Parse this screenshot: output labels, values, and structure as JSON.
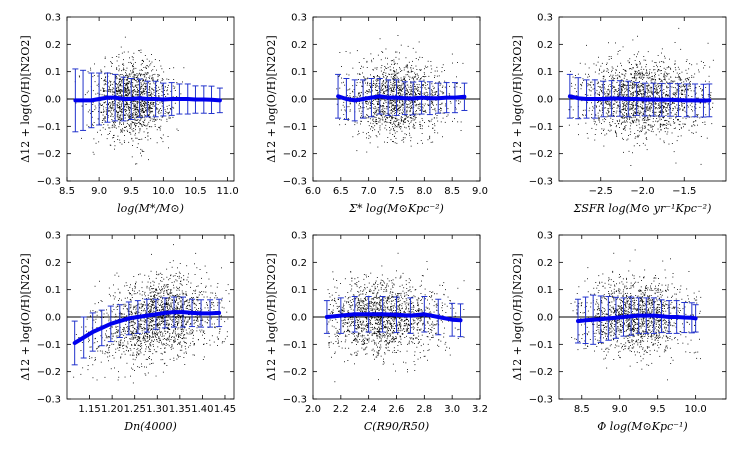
{
  "figure": {
    "ylabel": "Δ12 + log(O/H)[N2O2]"
  },
  "chart_data": [
    {
      "type": "scatter",
      "xlabel": "log(M*/M⊙)",
      "xlim": [
        8.5,
        11.1
      ],
      "ylim": [
        -0.3,
        0.3
      ],
      "xticks": [
        8.5,
        9.0,
        9.5,
        10.0,
        10.5,
        11.0
      ],
      "xtick_labels": [
        "8.5",
        "9.0",
        "9.5",
        "10.0",
        "10.5",
        "11.0"
      ],
      "yticks": [
        -0.3,
        -0.2,
        -0.1,
        0.0,
        0.1,
        0.2,
        0.3
      ],
      "ytick_labels": [
        "−0.3",
        "−0.2",
        "−0.1",
        "0.0",
        "0.1",
        "0.2",
        "0.3"
      ],
      "scatter": {
        "x_range": [
          8.6,
          10.9
        ],
        "center": 9.5,
        "spread": 0.3,
        "y_sigma": 0.07,
        "n": 1500
      },
      "binned": {
        "x": [
          8.63,
          8.75,
          8.88,
          9.0,
          9.13,
          9.25,
          9.38,
          9.5,
          9.63,
          9.75,
          9.88,
          10.0,
          10.13,
          10.25,
          10.38,
          10.5,
          10.63,
          10.75,
          10.88
        ],
        "median": [
          -0.005,
          -0.005,
          -0.005,
          0.0,
          0.005,
          0.005,
          0.0,
          0.0,
          0.003,
          0.0,
          0.0,
          -0.002,
          0.0,
          0.0,
          0.0,
          -0.002,
          -0.002,
          -0.003,
          -0.005
        ],
        "err": [
          0.115,
          0.11,
          0.1,
          0.095,
          0.09,
          0.085,
          0.08,
          0.075,
          0.07,
          0.065,
          0.065,
          0.06,
          0.06,
          0.055,
          0.055,
          0.05,
          0.05,
          0.05,
          0.045
        ]
      }
    },
    {
      "type": "scatter",
      "xlabel": "Σ* log(M⊙Kpc⁻²)",
      "xlim": [
        6.0,
        9.0
      ],
      "ylim": [
        -0.3,
        0.3
      ],
      "xticks": [
        6.0,
        6.5,
        7.0,
        7.5,
        8.0,
        8.5,
        9.0
      ],
      "xtick_labels": [
        "6.0",
        "6.5",
        "7.0",
        "7.5",
        "8.0",
        "8.5",
        "9.0"
      ],
      "yticks": [
        -0.3,
        -0.2,
        -0.1,
        0.0,
        0.1,
        0.2,
        0.3
      ],
      "ytick_labels": [
        "−0.3",
        "−0.2",
        "−0.1",
        "0.0",
        "0.1",
        "0.2",
        "0.3"
      ],
      "scatter": {
        "x_range": [
          6.4,
          8.8
        ],
        "center": 7.5,
        "spread": 0.45,
        "y_sigma": 0.07,
        "n": 1500
      },
      "binned": {
        "x": [
          6.45,
          6.6,
          6.75,
          6.9,
          7.05,
          7.2,
          7.35,
          7.5,
          7.65,
          7.8,
          7.95,
          8.1,
          8.25,
          8.4,
          8.55,
          8.72
        ],
        "median": [
          0.01,
          0.0,
          -0.005,
          0.0,
          0.005,
          0.01,
          0.005,
          0.005,
          0.003,
          0.002,
          0.005,
          0.003,
          0.003,
          0.005,
          0.005,
          0.008
        ],
        "err": [
          0.08,
          0.075,
          0.075,
          0.07,
          0.07,
          0.065,
          0.065,
          0.065,
          0.06,
          0.06,
          0.06,
          0.06,
          0.055,
          0.055,
          0.055,
          0.05
        ]
      }
    },
    {
      "type": "scatter",
      "xlabel": "ΣSFR log(M⊙ yr⁻¹Kpc⁻²)",
      "xlim": [
        -3.0,
        -1.0
      ],
      "ylim": [
        -0.3,
        0.3
      ],
      "xticks": [
        -2.5,
        -2.0,
        -1.5
      ],
      "xtick_labels": [
        "−2.5",
        "−2.0",
        "−1.5"
      ],
      "yticks": [
        -0.3,
        -0.2,
        -0.1,
        0.0,
        0.1,
        0.2,
        0.3
      ],
      "ytick_labels": [
        "−0.3",
        "−0.2",
        "−0.1",
        "0.0",
        "0.1",
        "0.2",
        "0.3"
      ],
      "scatter": {
        "x_range": [
          -2.9,
          -1.15
        ],
        "center": -2.0,
        "spread": 0.4,
        "y_sigma": 0.07,
        "n": 1800
      },
      "binned": {
        "x": [
          -2.87,
          -2.77,
          -2.67,
          -2.57,
          -2.47,
          -2.37,
          -2.27,
          -2.17,
          -2.07,
          -1.97,
          -1.87,
          -1.77,
          -1.67,
          -1.57,
          -1.47,
          -1.37,
          -1.27,
          -1.2
        ],
        "median": [
          0.01,
          0.003,
          0.0,
          0.0,
          0.0,
          0.002,
          0.002,
          0.0,
          0.0,
          -0.002,
          -0.002,
          -0.003,
          -0.003,
          -0.004,
          -0.005,
          -0.005,
          -0.006,
          -0.005
        ],
        "err": [
          0.08,
          0.075,
          0.07,
          0.07,
          0.065,
          0.065,
          0.065,
          0.065,
          0.06,
          0.06,
          0.06,
          0.06,
          0.06,
          0.06,
          0.06,
          0.06,
          0.06,
          0.06
        ]
      }
    },
    {
      "type": "scatter",
      "xlabel": "Dn(4000)",
      "xlim": [
        1.1,
        1.47
      ],
      "ylim": [
        -0.3,
        0.3
      ],
      "xticks": [
        1.15,
        1.2,
        1.25,
        1.3,
        1.35,
        1.4,
        1.45
      ],
      "xtick_labels": [
        "1.15",
        "1.20",
        "1.25",
        "1.30",
        "1.35",
        "1.40",
        "1.45"
      ],
      "yticks": [
        -0.3,
        -0.2,
        -0.1,
        0.0,
        0.1,
        0.2,
        0.3
      ],
      "ytick_labels": [
        "−0.3",
        "−0.2",
        "−0.1",
        "0.0",
        "0.1",
        "0.2",
        "0.3"
      ],
      "scatter": {
        "x_range": [
          1.11,
          1.46
        ],
        "center": 1.3,
        "spread": 0.07,
        "y_sigma": 0.075,
        "n": 1800,
        "trend": "dn4000"
      },
      "binned": {
        "x": [
          1.117,
          1.137,
          1.157,
          1.177,
          1.197,
          1.217,
          1.237,
          1.257,
          1.277,
          1.297,
          1.317,
          1.337,
          1.357,
          1.377,
          1.397,
          1.417,
          1.437
        ],
        "median": [
          -0.095,
          -0.075,
          -0.055,
          -0.04,
          -0.025,
          -0.015,
          -0.005,
          0.0,
          0.005,
          0.01,
          0.015,
          0.018,
          0.018,
          0.015,
          0.013,
          0.013,
          0.015
        ],
        "err": [
          0.08,
          0.075,
          0.07,
          0.065,
          0.065,
          0.06,
          0.06,
          0.06,
          0.06,
          0.055,
          0.055,
          0.055,
          0.055,
          0.05,
          0.05,
          0.05,
          0.05
        ]
      }
    },
    {
      "type": "scatter",
      "xlabel": "C(R90/R50)",
      "xlim": [
        2.0,
        3.2
      ],
      "ylim": [
        -0.3,
        0.3
      ],
      "xticks": [
        2.0,
        2.2,
        2.4,
        2.6,
        2.8,
        3.0,
        3.2
      ],
      "xtick_labels": [
        "2.0",
        "2.2",
        "2.4",
        "2.6",
        "2.8",
        "3.0",
        "3.2"
      ],
      "yticks": [
        -0.3,
        -0.2,
        -0.1,
        0.0,
        0.1,
        0.2,
        0.3
      ],
      "ytick_labels": [
        "−0.3",
        "−0.2",
        "−0.1",
        "0.0",
        "0.1",
        "0.2",
        "0.3"
      ],
      "scatter": {
        "x_range": [
          2.1,
          3.1
        ],
        "center": 2.5,
        "spread": 0.22,
        "y_sigma": 0.07,
        "n": 1600
      },
      "binned": {
        "x": [
          2.1,
          2.2,
          2.3,
          2.4,
          2.5,
          2.6,
          2.7,
          2.8,
          2.9,
          3.0,
          3.06
        ],
        "median": [
          0.0,
          0.005,
          0.01,
          0.01,
          0.01,
          0.008,
          0.005,
          0.01,
          0.0,
          -0.01,
          -0.012
        ],
        "err": [
          0.06,
          0.065,
          0.065,
          0.065,
          0.065,
          0.065,
          0.065,
          0.065,
          0.065,
          0.06,
          0.06
        ]
      }
    },
    {
      "type": "scatter",
      "xlabel": "Φ log(M⊙Kpc⁻¹)",
      "xlim": [
        8.2,
        10.4
      ],
      "ylim": [
        -0.3,
        0.3
      ],
      "xticks": [
        8.5,
        9.0,
        9.5,
        10.0
      ],
      "xtick_labels": [
        "8.5",
        "9.0",
        "9.5",
        "10.0"
      ],
      "yticks": [
        -0.3,
        -0.2,
        -0.1,
        0.0,
        0.1,
        0.2,
        0.3
      ],
      "ytick_labels": [
        "−0.3",
        "−0.2",
        "−0.1",
        "0.0",
        "0.1",
        "0.2",
        "0.3"
      ],
      "scatter": {
        "x_range": [
          8.35,
          10.1
        ],
        "center": 9.2,
        "spread": 0.35,
        "y_sigma": 0.07,
        "n": 1500
      },
      "binned": {
        "x": [
          8.45,
          8.55,
          8.65,
          8.75,
          8.85,
          8.95,
          9.05,
          9.15,
          9.25,
          9.35,
          9.45,
          9.55,
          9.65,
          9.75,
          9.85,
          9.95,
          10.0
        ],
        "median": [
          -0.015,
          -0.012,
          -0.01,
          -0.008,
          -0.005,
          -0.003,
          0.0,
          0.003,
          0.005,
          0.005,
          0.005,
          0.003,
          0.0,
          0.0,
          -0.002,
          -0.003,
          -0.005
        ],
        "err": [
          0.08,
          0.085,
          0.09,
          0.085,
          0.08,
          0.075,
          0.07,
          0.07,
          0.065,
          0.065,
          0.065,
          0.06,
          0.06,
          0.06,
          0.055,
          0.055,
          0.05
        ]
      }
    }
  ]
}
